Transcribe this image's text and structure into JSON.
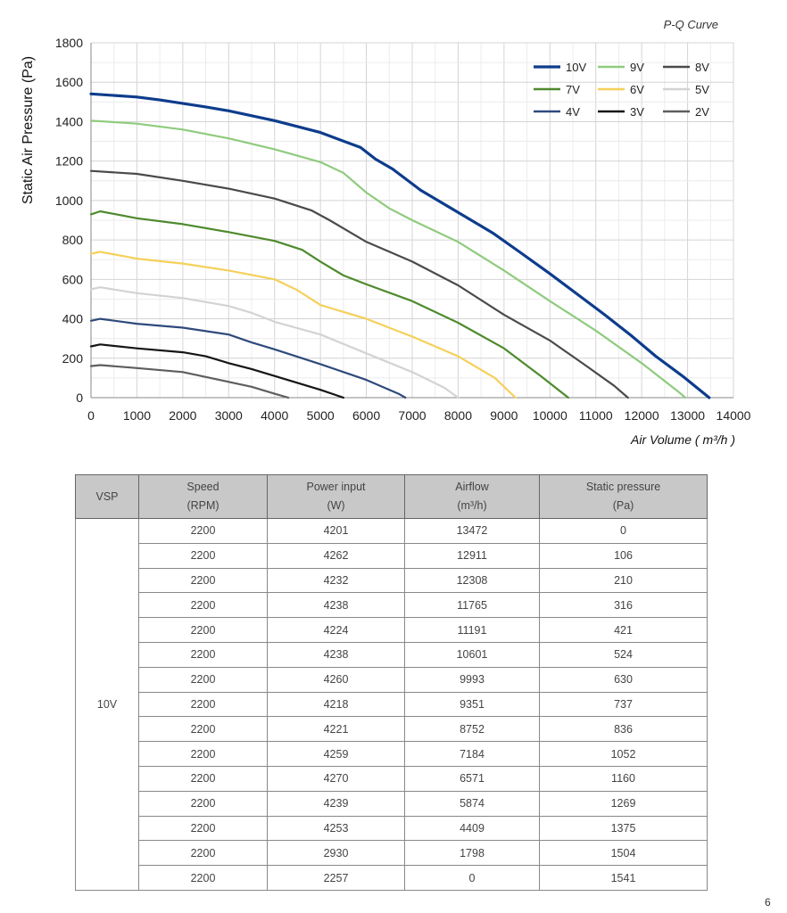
{
  "chart_data": {
    "type": "line",
    "title": "P-Q Curve",
    "xlabel": "Air Volume ( m³/h )",
    "ylabel": "Static Air Pressure  (Pa)",
    "xlim": [
      0,
      14000
    ],
    "ylim": [
      0,
      1800
    ],
    "x_ticks": [
      "0",
      "1000",
      "2000",
      "3000",
      "4000",
      "5000",
      "6000",
      "7000",
      "8000",
      "9000",
      "10000",
      "11000",
      "12000",
      "13000",
      "14000"
    ],
    "y_ticks": [
      "0",
      "200",
      "400",
      "600",
      "800",
      "1000",
      "1200",
      "1400",
      "1600",
      "1800"
    ],
    "grid": true,
    "legend_position": "top-right",
    "series": [
      {
        "name": "10V",
        "color": "#0d3c8c",
        "width": 3.2,
        "points": [
          [
            0,
            1541
          ],
          [
            1000,
            1525
          ],
          [
            1500,
            1510
          ],
          [
            2500,
            1475
          ],
          [
            3000,
            1455
          ],
          [
            4000,
            1405
          ],
          [
            5000,
            1345
          ],
          [
            5874,
            1269
          ],
          [
            6200,
            1210
          ],
          [
            6571,
            1160
          ],
          [
            7184,
            1052
          ],
          [
            8000,
            940
          ],
          [
            8752,
            836
          ],
          [
            9351,
            737
          ],
          [
            9993,
            630
          ],
          [
            10601,
            524
          ],
          [
            11191,
            421
          ],
          [
            11765,
            316
          ],
          [
            12308,
            210
          ],
          [
            12911,
            106
          ],
          [
            13472,
            0
          ]
        ]
      },
      {
        "name": "9V",
        "color": "#8fcb7e",
        "width": 2.2,
        "points": [
          [
            0,
            1405
          ],
          [
            1000,
            1390
          ],
          [
            2000,
            1360
          ],
          [
            3000,
            1315
          ],
          [
            4000,
            1260
          ],
          [
            5000,
            1195
          ],
          [
            5500,
            1140
          ],
          [
            6000,
            1040
          ],
          [
            6500,
            960
          ],
          [
            7000,
            900
          ],
          [
            8000,
            790
          ],
          [
            9000,
            645
          ],
          [
            10000,
            490
          ],
          [
            11000,
            340
          ],
          [
            12000,
            175
          ],
          [
            12800,
            30
          ],
          [
            12950,
            0
          ]
        ]
      },
      {
        "name": "8V",
        "color": "#4a4a4a",
        "width": 2.2,
        "points": [
          [
            0,
            1150
          ],
          [
            1000,
            1135
          ],
          [
            2000,
            1100
          ],
          [
            3000,
            1060
          ],
          [
            4000,
            1010
          ],
          [
            4800,
            950
          ],
          [
            5200,
            900
          ],
          [
            6000,
            790
          ],
          [
            7000,
            690
          ],
          [
            8000,
            570
          ],
          [
            9000,
            420
          ],
          [
            10000,
            290
          ],
          [
            10800,
            160
          ],
          [
            11400,
            60
          ],
          [
            11700,
            0
          ]
        ]
      },
      {
        "name": "7V",
        "color": "#4e8a2d",
        "width": 2.2,
        "points": [
          [
            0,
            930
          ],
          [
            200,
            945
          ],
          [
            1000,
            910
          ],
          [
            2000,
            880
          ],
          [
            3000,
            840
          ],
          [
            4000,
            795
          ],
          [
            4600,
            750
          ],
          [
            5000,
            690
          ],
          [
            5500,
            620
          ],
          [
            6000,
            575
          ],
          [
            7000,
            490
          ],
          [
            8000,
            380
          ],
          [
            9000,
            250
          ],
          [
            9800,
            110
          ],
          [
            10400,
            0
          ]
        ]
      },
      {
        "name": "6V",
        "color": "#f5d05a",
        "width": 2.2,
        "points": [
          [
            0,
            730
          ],
          [
            200,
            740
          ],
          [
            1000,
            705
          ],
          [
            2000,
            680
          ],
          [
            3000,
            645
          ],
          [
            4000,
            600
          ],
          [
            4500,
            545
          ],
          [
            5000,
            470
          ],
          [
            6000,
            400
          ],
          [
            7000,
            310
          ],
          [
            8000,
            210
          ],
          [
            8800,
            100
          ],
          [
            9250,
            0
          ]
        ]
      },
      {
        "name": "5V",
        "color": "#d3d3d3",
        "width": 2.2,
        "points": [
          [
            0,
            550
          ],
          [
            200,
            560
          ],
          [
            1000,
            530
          ],
          [
            2000,
            505
          ],
          [
            3000,
            465
          ],
          [
            3500,
            430
          ],
          [
            4000,
            385
          ],
          [
            5000,
            320
          ],
          [
            6000,
            225
          ],
          [
            7000,
            130
          ],
          [
            7700,
            50
          ],
          [
            8000,
            0
          ]
        ]
      },
      {
        "name": "4V",
        "color": "#2e4a7c",
        "width": 2.2,
        "points": [
          [
            0,
            390
          ],
          [
            200,
            400
          ],
          [
            1000,
            375
          ],
          [
            2000,
            355
          ],
          [
            3000,
            320
          ],
          [
            3500,
            280
          ],
          [
            4000,
            245
          ],
          [
            5000,
            170
          ],
          [
            6000,
            90
          ],
          [
            6700,
            20
          ],
          [
            6850,
            0
          ]
        ]
      },
      {
        "name": "3V",
        "color": "#151515",
        "width": 2.2,
        "points": [
          [
            0,
            260
          ],
          [
            200,
            270
          ],
          [
            1000,
            250
          ],
          [
            2000,
            230
          ],
          [
            2500,
            210
          ],
          [
            3000,
            175
          ],
          [
            3500,
            145
          ],
          [
            4000,
            110
          ],
          [
            5000,
            40
          ],
          [
            5500,
            0
          ]
        ]
      },
      {
        "name": "2V",
        "color": "#5e5e5e",
        "width": 2.2,
        "points": [
          [
            0,
            160
          ],
          [
            200,
            165
          ],
          [
            1000,
            150
          ],
          [
            2000,
            130
          ],
          [
            2500,
            105
          ],
          [
            3000,
            80
          ],
          [
            3500,
            55
          ],
          [
            4000,
            20
          ],
          [
            4300,
            0
          ]
        ]
      }
    ]
  },
  "table": {
    "headers": [
      {
        "line1": "VSP",
        "line2": ""
      },
      {
        "line1": "Speed",
        "line2": "(RPM)"
      },
      {
        "line1": "Power input",
        "line2": "(W)"
      },
      {
        "line1": "Airflow",
        "line2": "(m³/h)"
      },
      {
        "line1": "Static pressure",
        "line2": "(Pa)"
      }
    ],
    "vsp_label": "10V",
    "rows": [
      [
        "2200",
        "4201",
        "13472",
        "0"
      ],
      [
        "2200",
        "4262",
        "12911",
        "106"
      ],
      [
        "2200",
        "4232",
        "12308",
        "210"
      ],
      [
        "2200",
        "4238",
        "11765",
        "316"
      ],
      [
        "2200",
        "4224",
        "11191",
        "421"
      ],
      [
        "2200",
        "4238",
        "10601",
        "524"
      ],
      [
        "2200",
        "4260",
        "9993",
        "630"
      ],
      [
        "2200",
        "4218",
        "9351",
        "737"
      ],
      [
        "2200",
        "4221",
        "8752",
        "836"
      ],
      [
        "2200",
        "4259",
        "7184",
        "1052"
      ],
      [
        "2200",
        "4270",
        "6571",
        "1160"
      ],
      [
        "2200",
        "4239",
        "5874",
        "1269"
      ],
      [
        "2200",
        "4253",
        "4409",
        "1375"
      ],
      [
        "2200",
        "2930",
        "1798",
        "1504"
      ],
      [
        "2200",
        "2257",
        "0",
        "1541"
      ]
    ]
  },
  "page_number": "6"
}
